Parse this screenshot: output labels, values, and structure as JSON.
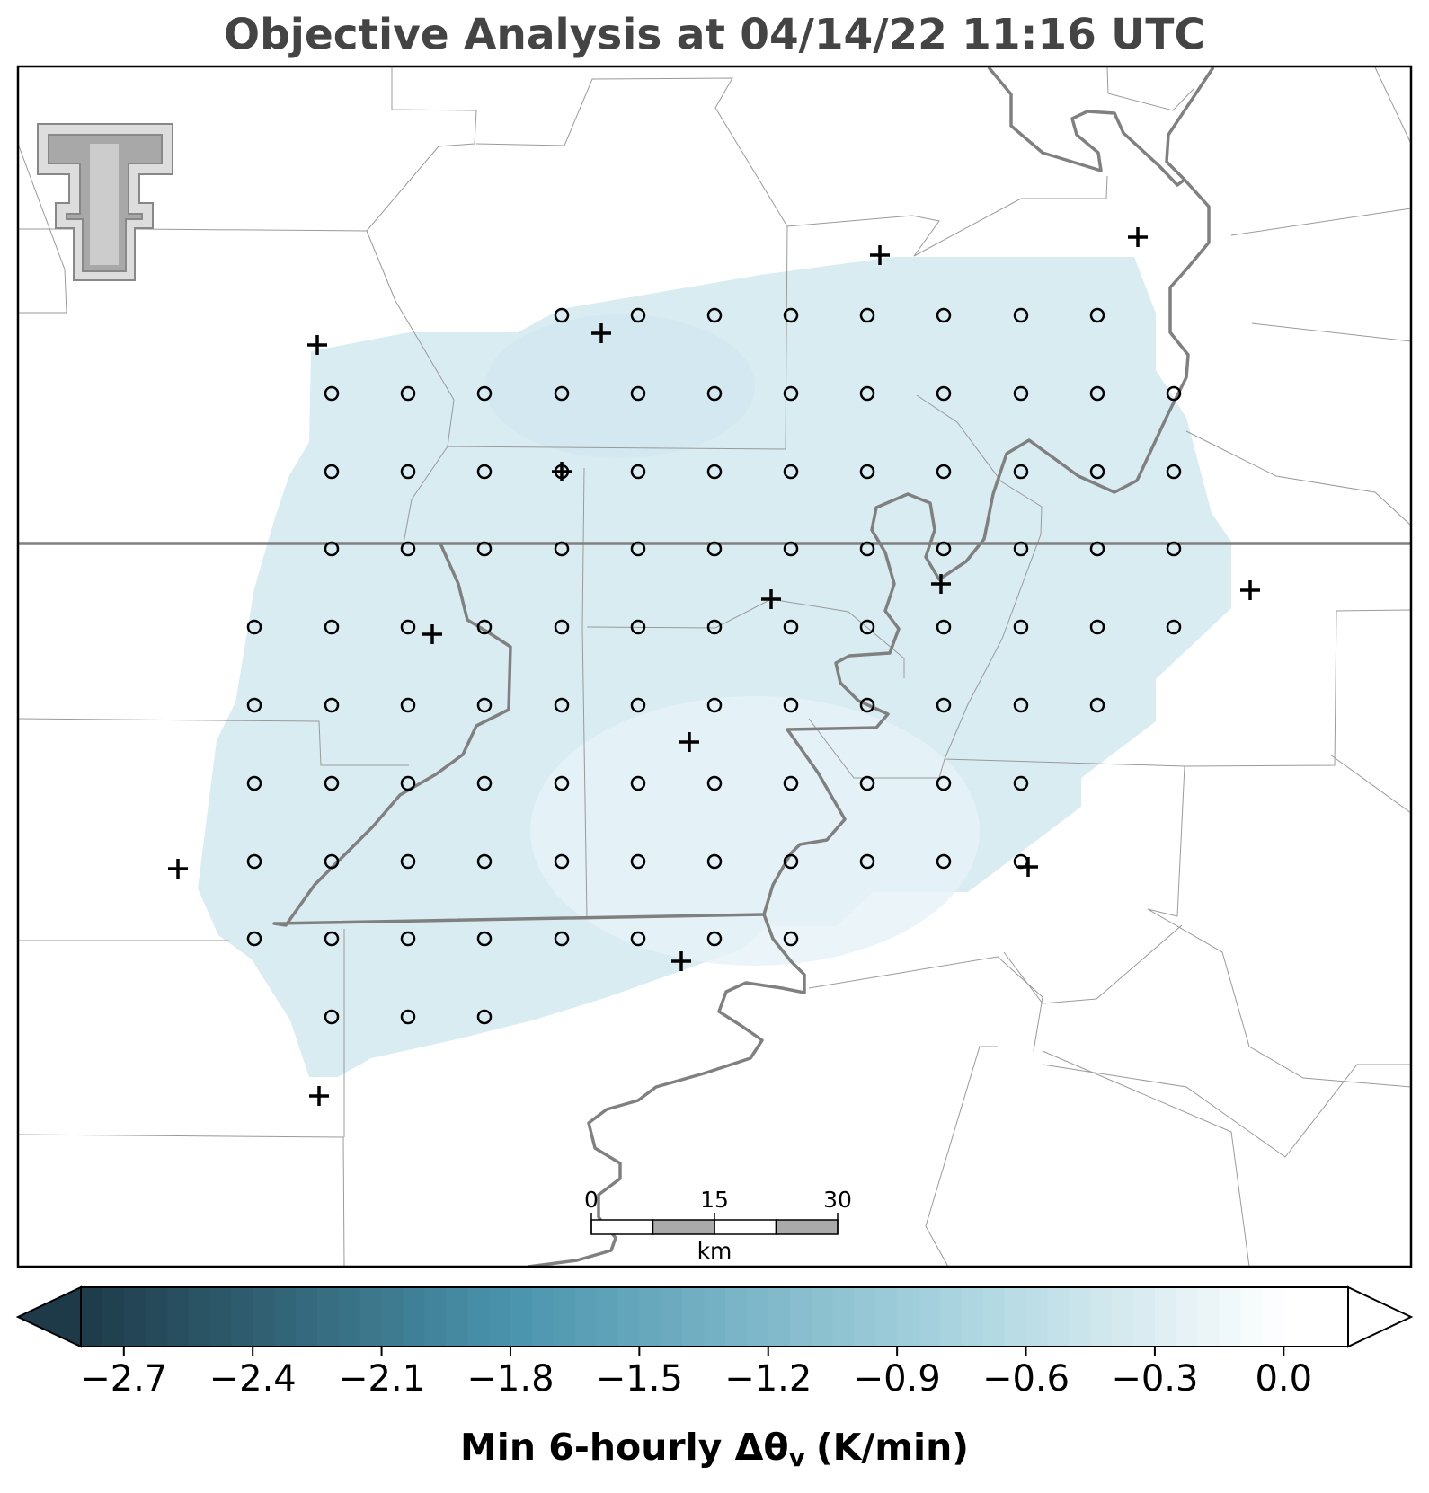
{
  "title": "Objective Analysis at 04/14/22 11:16 UTC",
  "colorbar": {
    "clim": [
      -2.8,
      0.15
    ],
    "ticks": [
      {
        "value": -2.7,
        "label": "−2.7"
      },
      {
        "value": -2.4,
        "label": "−2.4"
      },
      {
        "value": -2.1,
        "label": "−2.1"
      },
      {
        "value": -1.8,
        "label": "−1.8"
      },
      {
        "value": -1.5,
        "label": "−1.5"
      },
      {
        "value": -1.2,
        "label": "−1.2"
      },
      {
        "value": -0.9,
        "label": "−0.9"
      },
      {
        "value": -0.6,
        "label": "−0.6"
      },
      {
        "value": -0.3,
        "label": "−0.3"
      },
      {
        "value": 0,
        "label": "0.0"
      }
    ],
    "label_main": "Min 6-hourly Δθ",
    "label_sub": "v",
    "label_unit": "(K/min)"
  },
  "scale_bar": {
    "ticks": [
      0,
      15,
      30
    ],
    "unit": "km"
  }
}
